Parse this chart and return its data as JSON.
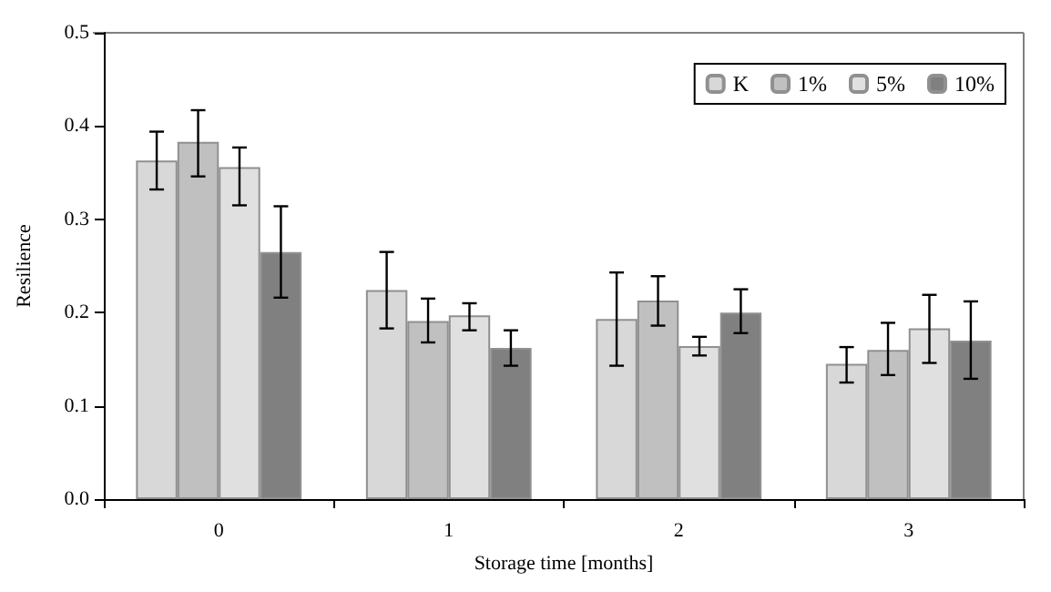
{
  "chart_data": {
    "type": "bar",
    "xlabel": "Storage time [months]",
    "ylabel": "Resilience",
    "categories": [
      "0",
      "1",
      "2",
      "3"
    ],
    "ylim": [
      0,
      0.5
    ],
    "yticks": [
      {
        "value": 0,
        "label": "0.0"
      },
      0.1,
      0.2,
      0.3,
      0.4,
      0.5
    ],
    "grid": false,
    "legend": "top right",
    "series": [
      {
        "name": "K",
        "color": "#d8d8d8",
        "values": [
          0.363,
          0.224,
          0.193,
          0.145
        ],
        "errors": [
          [
            0.332,
            0.394
          ],
          [
            0.183,
            0.265
          ],
          [
            0.143,
            0.243
          ],
          [
            0.125,
            0.163
          ]
        ]
      },
      {
        "name": "1%",
        "color": "#c0c0c0",
        "values": [
          0.383,
          0.191,
          0.213,
          0.16
        ],
        "errors": [
          [
            0.346,
            0.417
          ],
          [
            0.168,
            0.215
          ],
          [
            0.186,
            0.239
          ],
          [
            0.133,
            0.189
          ]
        ]
      },
      {
        "name": "5%",
        "color": "#e0e0e0",
        "values": [
          0.356,
          0.197,
          0.164,
          0.183
        ],
        "errors": [
          [
            0.315,
            0.377
          ],
          [
            0.181,
            0.21
          ],
          [
            0.154,
            0.174
          ],
          [
            0.146,
            0.219
          ]
        ]
      },
      {
        "name": "10%",
        "color": "#808080",
        "values": [
          0.265,
          0.162,
          0.2,
          0.17
        ],
        "errors": [
          [
            0.216,
            0.314
          ],
          [
            0.143,
            0.181
          ],
          [
            0.178,
            0.225
          ],
          [
            0.129,
            0.212
          ]
        ]
      }
    ]
  }
}
